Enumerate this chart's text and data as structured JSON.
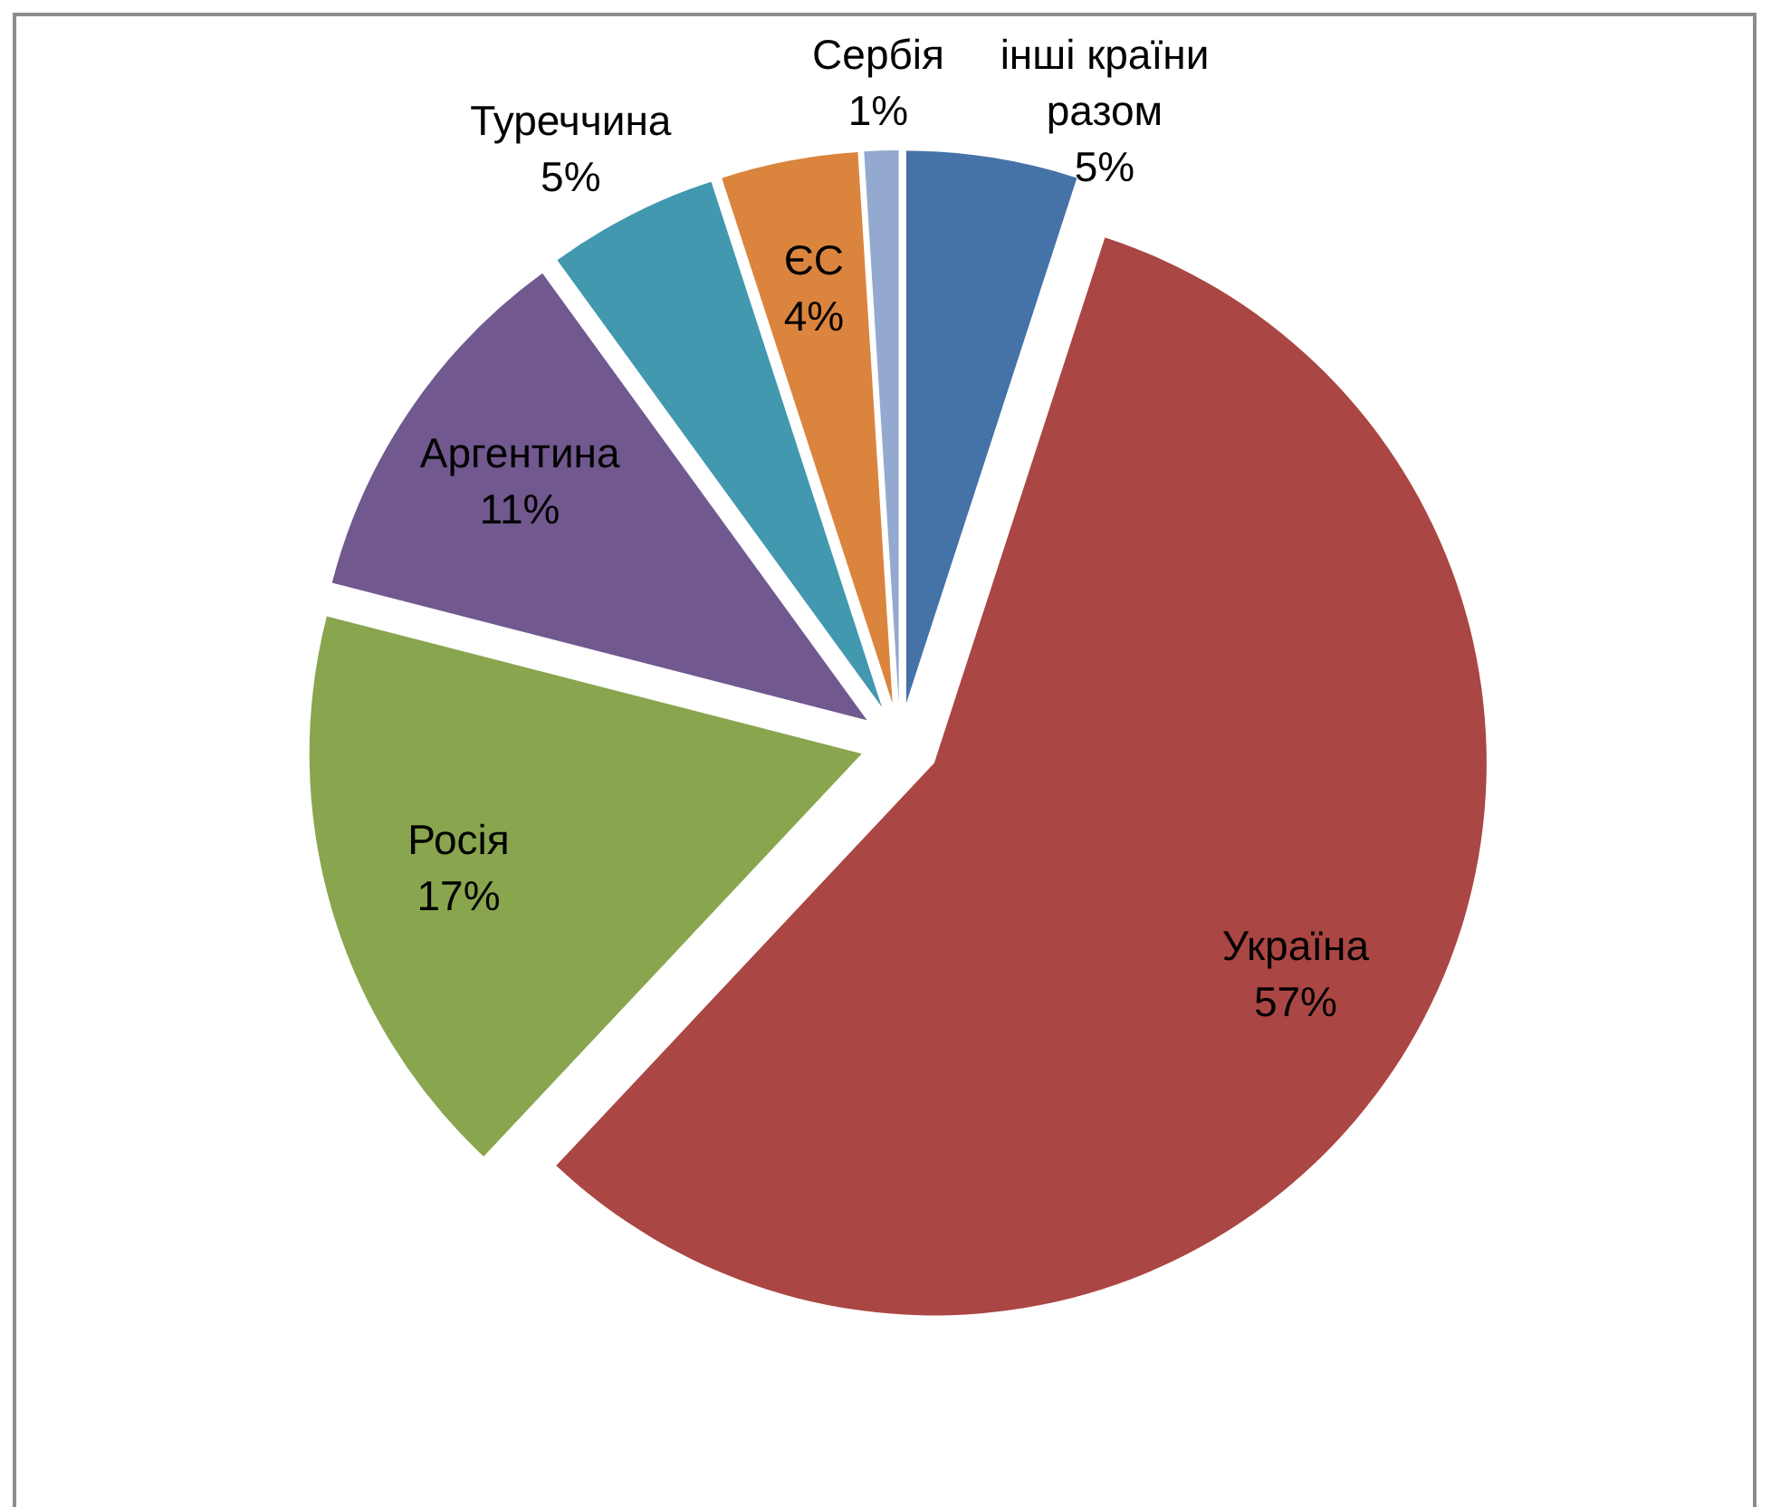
{
  "chart_data": {
    "type": "pie",
    "categories": [
      "інші країни разом",
      "Україна",
      "Росія",
      "Аргентина",
      "Туреччина",
      "ЄС",
      "Сербія"
    ],
    "values": [
      5,
      57,
      17,
      11,
      5,
      4,
      1
    ],
    "value_labels": [
      "5%",
      "57%",
      "17%",
      "11%",
      "5%",
      "4%",
      "1%"
    ],
    "colors": [
      "#4572a7",
      "#aa4643",
      "#89a54e",
      "#71588f",
      "#4198af",
      "#db843d",
      "#93a9cf"
    ]
  }
}
